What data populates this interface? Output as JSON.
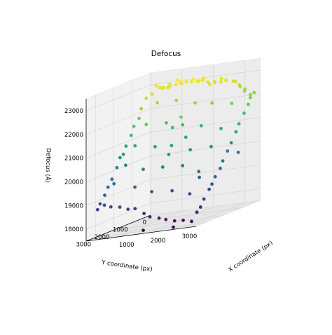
{
  "chart_data": {
    "type": "scatter3d",
    "title": "Defocus",
    "xlabel": "X coordinate (px)",
    "ylabel": "Y coordinate (px)",
    "zlabel": "Defocus (Å)",
    "xlim": [
      0,
      3500
    ],
    "ylim": [
      0,
      3500
    ],
    "zlim": [
      17500,
      23500
    ],
    "x_ticks": [
      1000,
      2000,
      3000
    ],
    "y_ticks": [
      0,
      1000,
      2000,
      3000
    ],
    "z_ticks": [
      18000,
      19000,
      20000,
      21000,
      22000,
      23000
    ],
    "grid": true,
    "colormap": "viridis",
    "color_by": "defocus",
    "points": [
      [
        170,
        213,
        22640
      ],
      [
        337,
        273,
        22980
      ],
      [
        400,
        134,
        22840
      ],
      [
        523,
        182,
        22840
      ],
      [
        493,
        353,
        22900
      ],
      [
        641,
        153,
        22820
      ],
      [
        603,
        359,
        22870
      ],
      [
        712,
        180,
        22950
      ],
      [
        815,
        324,
        22910
      ],
      [
        935,
        140,
        23070
      ],
      [
        983,
        309,
        22930
      ],
      [
        1102,
        180,
        22910
      ],
      [
        1121,
        324,
        23000
      ],
      [
        1218,
        136,
        22980
      ],
      [
        1356,
        375,
        22990
      ],
      [
        1424,
        209,
        22940
      ],
      [
        1557,
        313,
        23060
      ],
      [
        1635,
        174,
        22920
      ],
      [
        1666,
        309,
        22940
      ],
      [
        1796,
        181,
        23010
      ],
      [
        1842,
        323,
        22960
      ],
      [
        1940,
        193,
        22830
      ],
      [
        2100,
        368,
        22760
      ],
      [
        2176,
        233,
        22820
      ],
      [
        2256,
        375,
        22800
      ],
      [
        2350,
        160,
        22900
      ],
      [
        2426,
        317,
        22790
      ],
      [
        2546,
        254,
        22810
      ],
      [
        2622,
        359,
        22840
      ],
      [
        2730,
        168,
        22720
      ],
      [
        2883,
        304,
        22720
      ],
      [
        2930,
        185,
        22540
      ],
      [
        3038,
        324,
        22480
      ],
      [
        3119,
        199,
        22330
      ],
      [
        3199,
        359,
        22280
      ],
      [
        3313,
        231,
        22070
      ],
      [
        3354,
        308,
        21960
      ],
      [
        3447,
        254,
        22140
      ],
      [
        239,
        647,
        22590
      ],
      [
        197,
        841,
        22220
      ],
      [
        252,
        1055,
        21870
      ],
      [
        230,
        1303,
        21610
      ],
      [
        233,
        1452,
        21280
      ],
      [
        226,
        1721,
        20910
      ],
      [
        232,
        1874,
        20610
      ],
      [
        213,
        2024,
        20520
      ],
      [
        254,
        2263,
        20170
      ],
      [
        220,
        2476,
        19750
      ],
      [
        191,
        2638,
        19470
      ],
      [
        230,
        2885,
        19200
      ],
      [
        219,
        3117,
        18910
      ],
      [
        222,
        3260,
        18710
      ],
      [
        3441,
        566,
        21740
      ],
      [
        3449,
        807,
        21440
      ],
      [
        3446,
        1081,
        21080
      ],
      [
        3471,
        1282,
        20800
      ],
      [
        3448,
        1502,
        20410
      ],
      [
        3430,
        1676,
        20120
      ],
      [
        3425,
        1922,
        19780
      ],
      [
        3449,
        2102,
        19520
      ],
      [
        3447,
        2375,
        19250
      ],
      [
        3429,
        2520,
        18990
      ],
      [
        3433,
        2679,
        18820
      ],
      [
        3416,
        2929,
        18490
      ],
      [
        3442,
        3163,
        18220
      ],
      [
        3432,
        3342,
        18060
      ],
      [
        519,
        3398,
        18890
      ],
      [
        752,
        3442,
        18790
      ],
      [
        1036,
        3438,
        18730
      ],
      [
        1318,
        3474,
        18600
      ],
      [
        1519,
        3437,
        18580
      ],
      [
        1791,
        3415,
        18320
      ],
      [
        1993,
        3434,
        18150
      ],
      [
        2274,
        3420,
        18040
      ],
      [
        2514,
        3460,
        17950
      ],
      [
        2799,
        3471,
        17850
      ],
      [
        3030,
        3400,
        17810
      ],
      [
        3313,
        3428,
        17720
      ],
      [
        583,
        628,
        22330
      ],
      [
        572,
        1213,
        21600
      ],
      [
        546,
        1776,
        20880
      ],
      [
        541,
        2277,
        20220
      ],
      [
        521,
        2879,
        19630
      ],
      [
        1142,
        549,
        22310
      ],
      [
        1167,
        1137,
        21540
      ],
      [
        1171,
        1756,
        20730
      ],
      [
        1133,
        2334,
        19960
      ],
      [
        1158,
        2827,
        19360
      ],
      [
        1753,
        573,
        22100
      ],
      [
        1724,
        1200,
        21380
      ],
      [
        1689,
        1744,
        20680
      ],
      [
        1707,
        2253,
        19930
      ],
      [
        1712,
        2861,
        19080
      ],
      [
        2289,
        567,
        22000
      ],
      [
        2272,
        1124,
        21220
      ],
      [
        2319,
        1803,
        20410
      ],
      [
        2339,
        2254,
        19880
      ],
      [
        2347,
        2838,
        19000
      ],
      [
        2906,
        551,
        21870
      ],
      [
        2924,
        1168,
        21000
      ],
      [
        2912,
        1680,
        20400
      ],
      [
        2911,
        2350,
        19560
      ],
      [
        2914,
        2847,
        18770
      ],
      [
        1700,
        3300,
        17590
      ],
      [
        2700,
        3370,
        17570
      ],
      [
        2200,
        2100,
        21900
      ],
      [
        3200,
        700,
        19800
      ],
      [
        2100,
        2600,
        20500
      ],
      [
        1400,
        1200,
        21320
      ],
      [
        2000,
        1500,
        20900
      ],
      [
        2900,
        2300,
        19300
      ]
    ]
  }
}
